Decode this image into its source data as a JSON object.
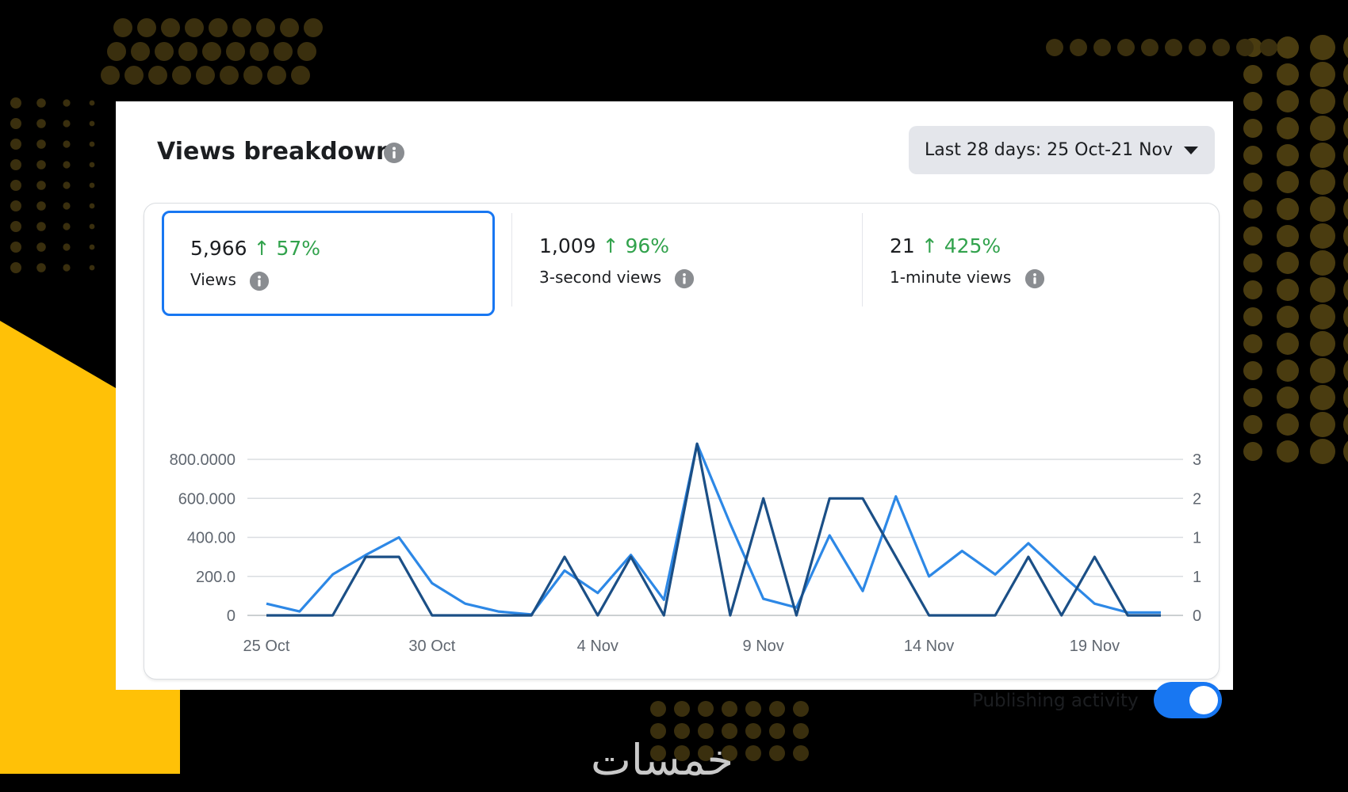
{
  "panel": {
    "title": "Views breakdown",
    "date_filter": "Last 28 days: 25 Oct-21 Nov"
  },
  "metrics": [
    {
      "value": "5,966",
      "change": "↑ 57%",
      "label": "Views"
    },
    {
      "value": "1,009",
      "change": "↑ 96%",
      "label": "3-second views"
    },
    {
      "value": "21",
      "change": "↑ 425%",
      "label": "1-minute views"
    }
  ],
  "publishing_activity_label": "Publishing activity",
  "brand_logo": "خمسات",
  "colors": {
    "accent": "#1877f2",
    "positive": "#31a24c",
    "views_line": "#2d88e6",
    "second_line": "#1b4f86",
    "background": "#000000",
    "highlight": "#ffc107"
  },
  "chart_data": {
    "type": "line",
    "x": [
      "25 Oct",
      "26 Oct",
      "27 Oct",
      "28 Oct",
      "29 Oct",
      "30 Oct",
      "31 Oct",
      "1 Nov",
      "2 Nov",
      "3 Nov",
      "4 Nov",
      "5 Nov",
      "6 Nov",
      "7 Nov",
      "8 Nov",
      "9 Nov",
      "10 Nov",
      "11 Nov",
      "12 Nov",
      "13 Nov",
      "14 Nov",
      "15 Nov",
      "16 Nov",
      "17 Nov",
      "18 Nov",
      "19 Nov",
      "20 Nov",
      "21 Nov"
    ],
    "x_tick_labels": [
      "25 Oct",
      "30 Oct",
      "4 Nov",
      "9 Nov",
      "14 Nov",
      "19 Nov"
    ],
    "x_tick_index": [
      0,
      5,
      10,
      15,
      20,
      25
    ],
    "y_left_tick_labels": [
      "0",
      "200.0",
      "400.00",
      "600.000",
      "800.0000"
    ],
    "y_left_tick_values": [
      0,
      200,
      400,
      600,
      800
    ],
    "y_right_tick_labels": [
      "0",
      "1",
      "1",
      "2",
      "3"
    ],
    "ylim": [
      0,
      800
    ],
    "grid": true,
    "series": [
      {
        "values": [
          60,
          20,
          210,
          310,
          400,
          165,
          60,
          20,
          5,
          230,
          115,
          310,
          80,
          880,
          470,
          85,
          40,
          410,
          125,
          610,
          200,
          330,
          210,
          370,
          210,
          60,
          15,
          15
        ]
      },
      {
        "values": [
          0,
          0,
          0,
          300,
          300,
          0,
          0,
          0,
          0,
          300,
          0,
          300,
          0,
          880,
          0,
          600,
          0,
          600,
          600,
          300,
          0,
          0,
          0,
          300,
          0,
          300,
          0,
          0
        ]
      }
    ]
  }
}
